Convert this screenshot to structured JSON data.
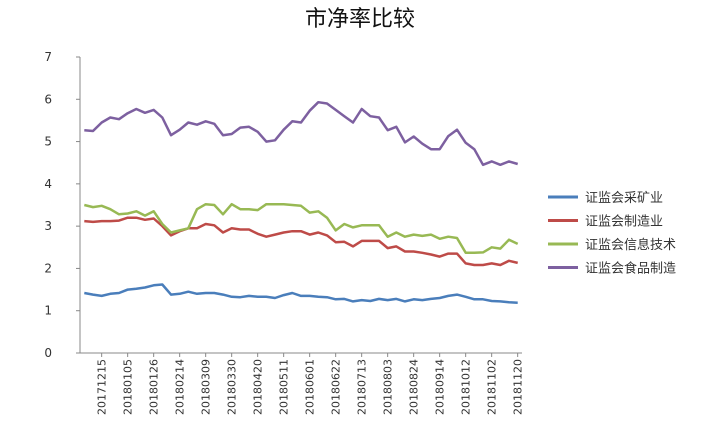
{
  "chart_data": {
    "type": "line",
    "title": "市净率比较",
    "categories": [
      null,
      null,
      "20171215",
      null,
      null,
      "20180105",
      null,
      null,
      "20180126",
      null,
      null,
      "20180214",
      null,
      null,
      "20180309",
      null,
      null,
      "20180330",
      null,
      null,
      "20180420",
      null,
      null,
      "20180511",
      null,
      null,
      "20180601",
      null,
      null,
      "20180622",
      null,
      null,
      "20180713",
      null,
      null,
      "20180803",
      null,
      null,
      "20180824",
      null,
      null,
      "20180914",
      null,
      null,
      "20181012",
      null,
      null,
      "20181102",
      null,
      null,
      "20181120"
    ],
    "series": [
      {
        "name": "证监会采矿业",
        "color": "#4a7ebb",
        "values": [
          1.42,
          1.38,
          1.35,
          1.4,
          1.42,
          1.5,
          1.52,
          1.55,
          1.6,
          1.62,
          1.38,
          1.4,
          1.45,
          1.4,
          1.42,
          1.42,
          1.38,
          1.33,
          1.32,
          1.35,
          1.33,
          1.33,
          1.3,
          1.37,
          1.42,
          1.35,
          1.35,
          1.33,
          1.32,
          1.27,
          1.28,
          1.22,
          1.25,
          1.23,
          1.28,
          1.25,
          1.28,
          1.22,
          1.27,
          1.25,
          1.28,
          1.3,
          1.35,
          1.38,
          1.33,
          1.27,
          1.27,
          1.23,
          1.22,
          1.2,
          1.19
        ]
      },
      {
        "name": "证监会制造业",
        "color": "#be4b48",
        "values": [
          3.12,
          3.1,
          3.12,
          3.12,
          3.13,
          3.2,
          3.2,
          3.15,
          3.18,
          3.0,
          2.78,
          2.88,
          2.95,
          2.95,
          3.05,
          3.02,
          2.85,
          2.95,
          2.92,
          2.92,
          2.82,
          2.75,
          2.8,
          2.85,
          2.88,
          2.88,
          2.8,
          2.85,
          2.78,
          2.62,
          2.63,
          2.52,
          2.65,
          2.65,
          2.65,
          2.48,
          2.52,
          2.4,
          2.4,
          2.37,
          2.33,
          2.28,
          2.35,
          2.35,
          2.12,
          2.08,
          2.08,
          2.12,
          2.08,
          2.18,
          2.13
        ]
      },
      {
        "name": "证监会信息技术",
        "color": "#98b954",
        "values": [
          3.5,
          3.45,
          3.48,
          3.4,
          3.28,
          3.3,
          3.35,
          3.25,
          3.35,
          3.05,
          2.85,
          2.9,
          2.95,
          3.4,
          3.52,
          3.5,
          3.28,
          3.52,
          3.4,
          3.4,
          3.38,
          3.52,
          3.52,
          3.52,
          3.5,
          3.48,
          3.32,
          3.35,
          3.2,
          2.9,
          3.05,
          2.97,
          3.02,
          3.02,
          3.02,
          2.75,
          2.85,
          2.75,
          2.8,
          2.77,
          2.8,
          2.7,
          2.75,
          2.72,
          2.37,
          2.37,
          2.38,
          2.5,
          2.47,
          2.68,
          2.58
        ]
      },
      {
        "name": "证监会食品制造",
        "color": "#7d60a0",
        "values": [
          5.27,
          5.25,
          5.45,
          5.57,
          5.53,
          5.67,
          5.77,
          5.68,
          5.75,
          5.57,
          5.15,
          5.28,
          5.45,
          5.4,
          5.48,
          5.42,
          5.15,
          5.18,
          5.33,
          5.35,
          5.23,
          5.0,
          5.03,
          5.28,
          5.48,
          5.45,
          5.73,
          5.93,
          5.9,
          5.75,
          5.6,
          5.45,
          5.77,
          5.6,
          5.57,
          5.27,
          5.35,
          4.98,
          5.12,
          4.95,
          4.82,
          4.82,
          5.13,
          5.28,
          4.97,
          4.82,
          4.45,
          4.53,
          4.45,
          4.53,
          4.47
        ]
      }
    ],
    "ylim": [
      0,
      7
    ],
    "yticks": [
      0,
      1,
      2,
      3,
      4,
      5,
      6,
      7
    ],
    "grid": false,
    "legend": "right"
  }
}
